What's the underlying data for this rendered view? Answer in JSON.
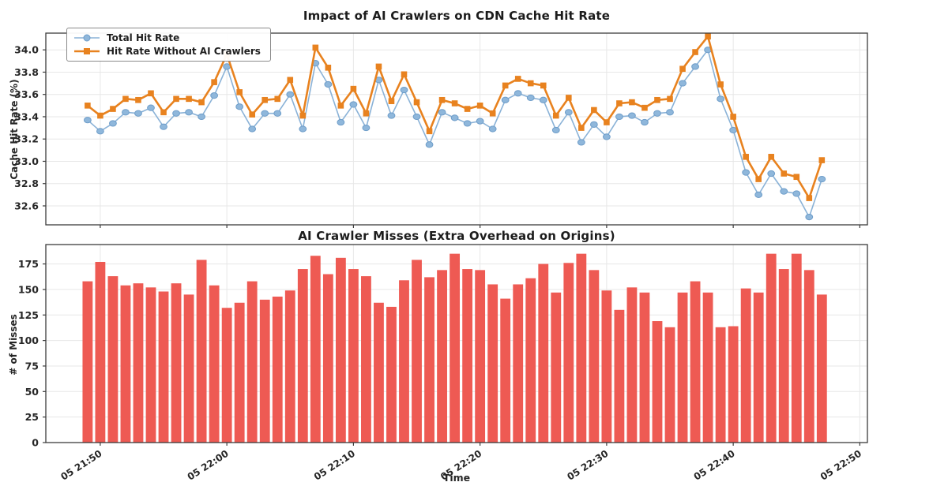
{
  "figure": {
    "background": "#ffffff",
    "text_color": "#262626",
    "grid_color": "#e7e7e7",
    "spine_color": "#3c3c3c"
  },
  "chart_data": [
    {
      "type": "line",
      "title": "Impact of AI Crawlers on CDN Cache Hit Rate",
      "ylabel": "Cache Hit Rate (%)",
      "ylim": [
        32.43,
        34.15
      ],
      "y_ticks": [
        "32.6",
        "32.8",
        "33.0",
        "33.2",
        "33.4",
        "33.6",
        "33.8",
        "34.0"
      ],
      "grid": true,
      "legend_position": "upper left",
      "x_range": [
        -3.3,
        61.6
      ],
      "x_tick_positions": [
        1,
        11,
        21,
        31,
        41,
        51,
        61
      ],
      "x_tick_labels": [
        "05 21:50",
        "05 22:00",
        "05 22:10",
        "05 22:20",
        "05 22:30",
        "05 22:40",
        "05 22:50"
      ],
      "times": [
        "05 21:49",
        "05 21:50",
        "05 21:51",
        "05 21:52",
        "05 21:53",
        "05 21:54",
        "05 21:55",
        "05 21:56",
        "05 21:57",
        "05 21:58",
        "05 21:59",
        "05 22:00",
        "05 22:01",
        "05 22:02",
        "05 22:03",
        "05 22:04",
        "05 22:05",
        "05 22:06",
        "05 22:07",
        "05 22:08",
        "05 22:09",
        "05 22:10",
        "05 22:11",
        "05 22:12",
        "05 22:13",
        "05 22:14",
        "05 22:15",
        "05 22:16",
        "05 22:17",
        "05 22:18",
        "05 22:19",
        "05 22:20",
        "05 22:21",
        "05 22:22",
        "05 22:23",
        "05 22:24",
        "05 22:25",
        "05 22:26",
        "05 22:27",
        "05 22:28",
        "05 22:29",
        "05 22:30",
        "05 22:31",
        "05 22:32",
        "05 22:33",
        "05 22:34",
        "05 22:35",
        "05 22:36",
        "05 22:37",
        "05 22:38",
        "05 22:39",
        "05 22:40",
        "05 22:41",
        "05 22:42",
        "05 22:43",
        "05 22:44",
        "05 22:45",
        "05 22:46",
        "05 22:47"
      ],
      "series": [
        {
          "name": "Total Hit Rate",
          "color": "#8ab2d7",
          "marker": "circle",
          "marker_fill": "#8fb7db",
          "marker_edge": "#6e9dc9",
          "values": [
            33.37,
            33.27,
            33.34,
            33.44,
            33.43,
            33.48,
            33.31,
            33.43,
            33.44,
            33.4,
            33.59,
            33.85,
            33.49,
            33.29,
            33.43,
            33.43,
            33.6,
            33.29,
            33.88,
            33.69,
            33.35,
            33.51,
            33.3,
            33.73,
            33.41,
            33.64,
            33.4,
            33.15,
            33.44,
            33.39,
            33.34,
            33.36,
            33.29,
            33.55,
            33.61,
            33.57,
            33.55,
            33.28,
            33.44,
            33.17,
            33.33,
            33.22,
            33.4,
            33.41,
            33.35,
            33.43,
            33.44,
            33.7,
            33.85,
            34.0,
            33.56,
            33.28,
            32.9,
            32.7,
            32.89,
            32.73,
            32.71,
            32.5,
            32.84
          ]
        },
        {
          "name": "Hit Rate Without AI Crawlers",
          "color": "#e8821f",
          "marker": "square",
          "marker_fill": "#e8821f",
          "marker_edge": "#e8821f",
          "values": [
            33.5,
            33.41,
            33.47,
            33.56,
            33.55,
            33.61,
            33.44,
            33.56,
            33.56,
            33.53,
            33.71,
            33.96,
            33.62,
            33.42,
            33.55,
            33.56,
            33.73,
            33.41,
            34.02,
            33.84,
            33.5,
            33.65,
            33.43,
            33.85,
            33.54,
            33.78,
            33.53,
            33.27,
            33.55,
            33.52,
            33.47,
            33.5,
            33.43,
            33.68,
            33.74,
            33.7,
            33.68,
            33.41,
            33.57,
            33.3,
            33.46,
            33.35,
            33.52,
            33.53,
            33.48,
            33.55,
            33.56,
            33.83,
            33.98,
            34.12,
            33.69,
            33.4,
            33.04,
            32.84,
            33.04,
            32.89,
            32.86,
            32.67,
            33.01
          ]
        }
      ]
    },
    {
      "type": "bar",
      "title": "AI Crawler Misses (Extra Overhead on Origins)",
      "ylabel": "# of Misses",
      "xlabel": "Time",
      "bar_color": "#ee5a53",
      "ylim": [
        0,
        194
      ],
      "y_ticks": [
        "0",
        "25",
        "50",
        "75",
        "100",
        "125",
        "150",
        "175"
      ],
      "grid": true,
      "x_range": [
        -3.3,
        61.6
      ],
      "x_tick_positions": [
        1,
        11,
        21,
        31,
        41,
        51,
        61
      ],
      "x_tick_labels": [
        "05 21:50",
        "05 22:00",
        "05 22:10",
        "05 22:20",
        "05 22:30",
        "05 22:40",
        "05 22:50"
      ],
      "values": [
        158,
        177,
        163,
        154,
        156,
        152,
        148,
        156,
        145,
        179,
        154,
        132,
        137,
        158,
        140,
        143,
        149,
        170,
        183,
        165,
        181,
        170,
        163,
        137,
        133,
        159,
        179,
        162,
        169,
        185,
        170,
        169,
        155,
        141,
        155,
        161,
        175,
        147,
        176,
        185,
        169,
        149,
        130,
        152,
        147,
        119,
        113,
        147,
        158,
        147,
        113,
        114,
        151,
        147,
        185,
        170,
        185,
        169,
        145
      ]
    }
  ]
}
